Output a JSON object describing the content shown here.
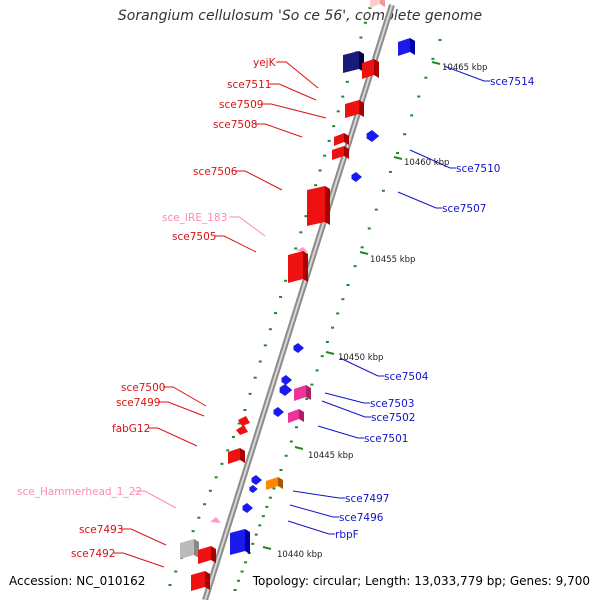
{
  "title": "Sorangium cellulosum 'So ce 56', complete genome",
  "accession": "Accession: NC_010162",
  "summary": "Topology: circular; Length: 13,033,779 bp; Genes: 9,700",
  "colors": {
    "forward": "#ee1111",
    "forward_dark": "#aa0000",
    "reverse": "#1a1aee",
    "reverse_dark": "#0000aa",
    "navy": "#1a1a7a",
    "rna": "#ff99cc",
    "magenta": "#ee3399",
    "orange": "#ff8800",
    "gray": "#bbbbbb",
    "tick": "#228822",
    "backbone": "#999999"
  },
  "kbp_labels": [
    "10465 kbp",
    "10460 kbp",
    "10455 kbp",
    "10450 kbp",
    "10445 kbp",
    "10440 kbp"
  ],
  "gene_labels": {
    "left": [
      {
        "text": "yejK",
        "color": "red"
      },
      {
        "text": "sce7511",
        "color": "red"
      },
      {
        "text": "sce7509",
        "color": "red"
      },
      {
        "text": "sce7508",
        "color": "red"
      },
      {
        "text": "sce7506",
        "color": "red"
      },
      {
        "text": "sce_IRE_183",
        "color": "pink"
      },
      {
        "text": "sce7505",
        "color": "red"
      },
      {
        "text": "sce7500",
        "color": "red"
      },
      {
        "text": "sce7499",
        "color": "red"
      },
      {
        "text": "fabG12",
        "color": "red"
      },
      {
        "text": "sce_Hammerhead_1_22",
        "color": "pink"
      },
      {
        "text": "sce7493",
        "color": "red"
      },
      {
        "text": "sce7492",
        "color": "red"
      }
    ],
    "right": [
      {
        "text": "sce7514",
        "color": "blue"
      },
      {
        "text": "sce7510",
        "color": "blue"
      },
      {
        "text": "sce7507",
        "color": "blue"
      },
      {
        "text": "sce7504",
        "color": "blue"
      },
      {
        "text": "sce7503",
        "color": "blue"
      },
      {
        "text": "sce7502",
        "color": "blue"
      },
      {
        "text": "sce7501",
        "color": "blue"
      },
      {
        "text": "sce7497",
        "color": "blue"
      },
      {
        "text": "sce7496",
        "color": "blue"
      },
      {
        "text": "rbpF",
        "color": "blue"
      }
    ]
  }
}
